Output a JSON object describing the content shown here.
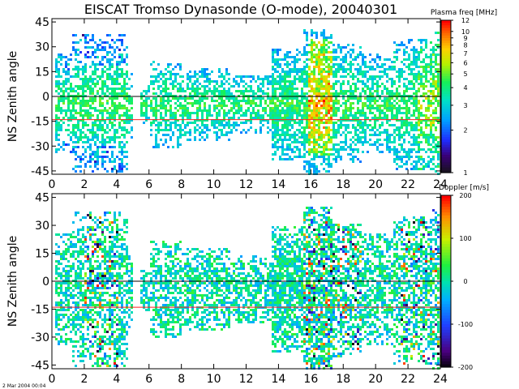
{
  "title": "EISCAT Tromso Dynasonde (O-mode),  20040301",
  "footer_timestamp": "2 Mar 2004 00:04",
  "chart_data": [
    {
      "type": "heatmap",
      "panel": "top",
      "ylabel": "NS Zenith angle",
      "xlabel": "",
      "xlim": [
        0,
        24
      ],
      "ylim": [
        -47,
        47
      ],
      "x_ticks": [
        "0",
        "2",
        "4",
        "6",
        "8",
        "10",
        "12",
        "14",
        "16",
        "18",
        "20",
        "22",
        "24"
      ],
      "y_ticks": [
        "45",
        "30",
        "15",
        "0",
        "-15",
        "-30",
        "-45"
      ],
      "reference_lines": [
        {
          "y": 0,
          "color": "#000000"
        },
        {
          "y": -14,
          "color": "#ff2020"
        }
      ],
      "colorbar": {
        "title": "Plasma freq [MHz]",
        "scale": "log",
        "range": [
          1,
          12
        ],
        "tick_labels": [
          "12",
          "10",
          "9",
          "8",
          "7",
          "6",
          "5",
          "4",
          "3",
          "2",
          "1"
        ],
        "tick_values": [
          12,
          10,
          9,
          8,
          7,
          6,
          5,
          4,
          3,
          2,
          1
        ]
      }
    },
    {
      "type": "heatmap",
      "panel": "bottom",
      "ylabel": "NS Zenith angle",
      "xlabel": "",
      "xlim": [
        0,
        24
      ],
      "ylim": [
        -47,
        47
      ],
      "x_ticks": [
        "0",
        "2",
        "4",
        "6",
        "8",
        "10",
        "12",
        "14",
        "16",
        "18",
        "20",
        "22",
        "24"
      ],
      "y_ticks": [
        "45",
        "30",
        "15",
        "0",
        "-15",
        "-30",
        "-45"
      ],
      "reference_lines": [
        {
          "y": 0,
          "color": "#000000"
        },
        {
          "y": -14,
          "color": "#ff2020"
        }
      ],
      "colorbar": {
        "title": "Doppler [m/s]",
        "scale": "linear",
        "range": [
          -200,
          200
        ],
        "tick_labels": [
          "200",
          "100",
          "0",
          "-100",
          "-200"
        ],
        "tick_values": [
          200,
          100,
          0,
          -100,
          -200
        ]
      }
    }
  ]
}
